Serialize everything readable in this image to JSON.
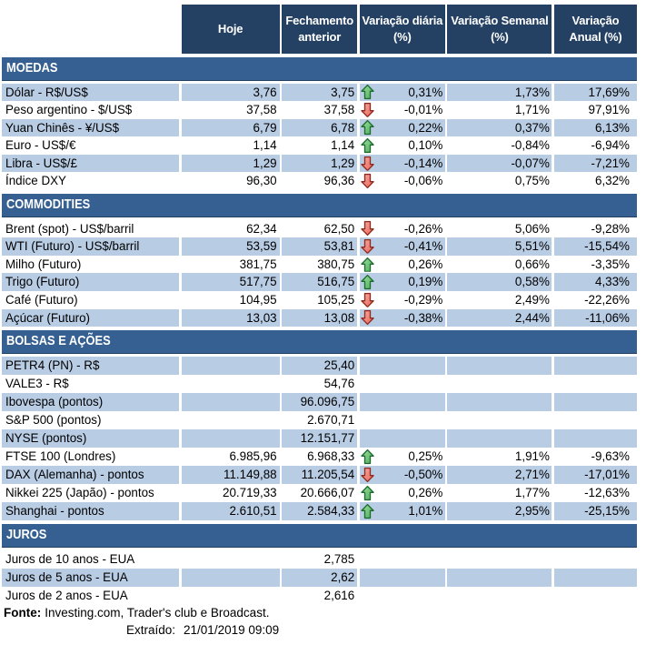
{
  "chart_data": {
    "type": "table",
    "columns": [
      "",
      "Hoje",
      "Fechamento anterior",
      "Variação diária (%)",
      "Variação Semanal (%)",
      "Variação Anual (%)"
    ],
    "sections": [
      {
        "title": "MOEDAS",
        "rows": [
          {
            "label": "Dólar - R$/US$",
            "hoje": "3,76",
            "fechamento_anterior": "3,75",
            "trend": "up",
            "variacao_diaria": "0,31%",
            "variacao_semanal": "1,73%",
            "variacao_anual": "17,69%",
            "shaded": true
          },
          {
            "label": "Peso argentino - $/US$",
            "hoje": "37,58",
            "fechamento_anterior": "37,58",
            "trend": "down",
            "variacao_diaria": "-0,01%",
            "variacao_semanal": "1,71%",
            "variacao_anual": "97,91%",
            "shaded": false
          },
          {
            "label": "Yuan Chinês - ¥/US$",
            "hoje": "6,79",
            "fechamento_anterior": "6,78",
            "trend": "up",
            "variacao_diaria": "0,22%",
            "variacao_semanal": "0,37%",
            "variacao_anual": "6,13%",
            "shaded": true
          },
          {
            "label": "Euro - US$/€",
            "hoje": "1,14",
            "fechamento_anterior": "1,14",
            "trend": "up",
            "variacao_diaria": "0,10%",
            "variacao_semanal": "-0,84%",
            "variacao_anual": "-6,94%",
            "shaded": false
          },
          {
            "label": "Libra - US$/£",
            "hoje": "1,29",
            "fechamento_anterior": "1,29",
            "trend": "down",
            "variacao_diaria": "-0,14%",
            "variacao_semanal": "-0,07%",
            "variacao_anual": "-7,21%",
            "shaded": true
          },
          {
            "label": "Índice DXY",
            "hoje": "96,30",
            "fechamento_anterior": "96,36",
            "trend": "down",
            "variacao_diaria": "-0,06%",
            "variacao_semanal": "0,75%",
            "variacao_anual": "6,32%",
            "shaded": false
          }
        ]
      },
      {
        "title": "COMMODITIES",
        "rows": [
          {
            "label": "Brent (spot) - US$/barril",
            "hoje": "62,34",
            "fechamento_anterior": "62,50",
            "trend": "down",
            "variacao_diaria": "-0,26%",
            "variacao_semanal": "5,06%",
            "variacao_anual": "-9,28%",
            "shaded": false
          },
          {
            "label": "WTI (Futuro) - US$/barril",
            "hoje": "53,59",
            "fechamento_anterior": "53,81",
            "trend": "down",
            "variacao_diaria": "-0,41%",
            "variacao_semanal": "5,51%",
            "variacao_anual": "-15,54%",
            "shaded": true
          },
          {
            "label": "Milho (Futuro)",
            "hoje": "381,75",
            "fechamento_anterior": "380,75",
            "trend": "up",
            "variacao_diaria": "0,26%",
            "variacao_semanal": "0,66%",
            "variacao_anual": "-3,35%",
            "shaded": false
          },
          {
            "label": "Trigo (Futuro)",
            "hoje": "517,75",
            "fechamento_anterior": "516,75",
            "trend": "up",
            "variacao_diaria": "0,19%",
            "variacao_semanal": "0,58%",
            "variacao_anual": "4,33%",
            "shaded": true
          },
          {
            "label": "Café (Futuro)",
            "hoje": "104,95",
            "fechamento_anterior": "105,25",
            "trend": "down",
            "variacao_diaria": "-0,29%",
            "variacao_semanal": "2,49%",
            "variacao_anual": "-22,26%",
            "shaded": false
          },
          {
            "label": "Açúcar (Futuro)",
            "hoje": "13,03",
            "fechamento_anterior": "13,08",
            "trend": "down",
            "variacao_diaria": "-0,38%",
            "variacao_semanal": "2,44%",
            "variacao_anual": "-11,06%",
            "shaded": true
          }
        ]
      },
      {
        "title": "BOLSAS E AÇÕES",
        "rows": [
          {
            "label": "PETR4 (PN) - R$",
            "hoje": "",
            "fechamento_anterior": "25,40",
            "trend": "",
            "variacao_diaria": "",
            "variacao_semanal": "",
            "variacao_anual": "",
            "shaded": true
          },
          {
            "label": "VALE3 - R$",
            "hoje": "",
            "fechamento_anterior": "54,76",
            "trend": "",
            "variacao_diaria": "",
            "variacao_semanal": "",
            "variacao_anual": "",
            "shaded": false
          },
          {
            "label": "Ibovespa (pontos)",
            "hoje": "",
            "fechamento_anterior": "96.096,75",
            "trend": "",
            "variacao_diaria": "",
            "variacao_semanal": "",
            "variacao_anual": "",
            "shaded": true
          },
          {
            "label": "S&P 500 (pontos)",
            "hoje": "",
            "fechamento_anterior": "2.670,71",
            "trend": "",
            "variacao_diaria": "",
            "variacao_semanal": "",
            "variacao_anual": "",
            "shaded": false
          },
          {
            "label": "NYSE (pontos)",
            "hoje": "",
            "fechamento_anterior": "12.151,77",
            "trend": "",
            "variacao_diaria": "",
            "variacao_semanal": "",
            "variacao_anual": "",
            "shaded": true
          },
          {
            "label": "FTSE 100 (Londres)",
            "hoje": "6.985,96",
            "fechamento_anterior": "6.968,33",
            "trend": "up",
            "variacao_diaria": "0,25%",
            "variacao_semanal": "1,91%",
            "variacao_anual": "-9,63%",
            "shaded": false
          },
          {
            "label": "DAX (Alemanha) - pontos",
            "hoje": "11.149,88",
            "fechamento_anterior": "11.205,54",
            "trend": "down",
            "variacao_diaria": "-0,50%",
            "variacao_semanal": "2,71%",
            "variacao_anual": "-17,01%",
            "shaded": true
          },
          {
            "label": "Nikkei 225 (Japão) - pontos",
            "hoje": "20.719,33",
            "fechamento_anterior": "20.666,07",
            "trend": "up",
            "variacao_diaria": "0,26%",
            "variacao_semanal": "1,77%",
            "variacao_anual": "-12,63%",
            "shaded": false
          },
          {
            "label": "Shanghai - pontos",
            "hoje": "2.610,51",
            "fechamento_anterior": "2.584,33",
            "trend": "up",
            "variacao_diaria": "1,01%",
            "variacao_semanal": "2,95%",
            "variacao_anual": "-25,15%",
            "shaded": true
          }
        ]
      },
      {
        "title": "JUROS",
        "rows": [
          {
            "label": "Juros de 10 anos - EUA",
            "hoje": "",
            "fechamento_anterior": "2,785",
            "trend": "",
            "variacao_diaria": "",
            "variacao_semanal": "",
            "variacao_anual": "",
            "shaded": false
          },
          {
            "label": "Juros de 5 anos - EUA",
            "hoje": "",
            "fechamento_anterior": "2,62",
            "trend": "",
            "variacao_diaria": "",
            "variacao_semanal": "",
            "variacao_anual": "",
            "shaded": true
          },
          {
            "label": "Juros de 2 anos - EUA",
            "hoje": "",
            "fechamento_anterior": "2,616",
            "trend": "",
            "variacao_diaria": "",
            "variacao_semanal": "",
            "variacao_anual": "",
            "shaded": false
          }
        ]
      }
    ]
  },
  "header": {
    "columns": [
      {
        "id": "hoje",
        "line1": "Hoje",
        "line2": ""
      },
      {
        "id": "fechamento-anterior",
        "line1": "Fechamento",
        "line2": "anterior"
      },
      {
        "id": "variacao-diaria",
        "line1": "Variação diária",
        "line2": "(%)"
      },
      {
        "id": "variacao-semanal",
        "line1": "Variação Semanal",
        "line2": "(%)"
      },
      {
        "id": "variacao-anual",
        "line1": "Variação",
        "line2": "Anual (%)"
      }
    ]
  },
  "footer": {
    "source_label": "Fonte:",
    "source_text": "Investing.com, Trader's club e Broadcast.",
    "extracted_label": "Extraído:",
    "extracted_value": "21/01/2019 09:09"
  },
  "colors": {
    "header_bg": "#244062",
    "section_bg": "#366092",
    "section_border": "#22405F",
    "band_bg": "#B8CCE4",
    "row_bg": "#FFFFFF",
    "text": "#000000",
    "header_text": "#FFFFFF",
    "arrow_up_stroke": "#1E6B2F",
    "arrow_up_fill": "#4FAE5C",
    "arrow_up_fill_light": "#9ADE9F",
    "arrow_down_stroke": "#8F2B1E",
    "arrow_down_fill": "#E8655A",
    "arrow_down_fill_light": "#F8ACA4"
  },
  "icons": {
    "up": "arrow-up-icon",
    "down": "arrow-down-icon"
  }
}
